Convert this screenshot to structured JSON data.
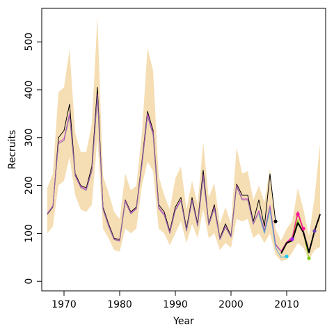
{
  "chart_data": {
    "type": "line",
    "title": "",
    "xlabel": "Year",
    "ylabel": "Recruits",
    "xlim": [
      1966,
      2017
    ],
    "ylim": [
      -20,
      570
    ],
    "xticks": [
      1970,
      1980,
      1990,
      2000,
      2010
    ],
    "yticks": [
      0,
      100,
      200,
      300,
      400,
      500
    ],
    "grid": false,
    "legend": "none",
    "band": {
      "color": "#f5deb3",
      "x": [
        1967,
        1968,
        1969,
        1970,
        1971,
        1972,
        1973,
        1974,
        1975,
        1976,
        1977,
        1978,
        1979,
        1980,
        1981,
        1982,
        1983,
        1984,
        1985,
        1986,
        1987,
        1988,
        1989,
        1990,
        1991,
        1992,
        1993,
        1994,
        1995,
        1996,
        1997,
        1998,
        1999,
        2000,
        2001,
        2002,
        2003,
        2004,
        2005,
        2006,
        2007,
        2008,
        2009,
        2010,
        2011,
        2012,
        2013,
        2014,
        2015,
        2016
      ],
      "lower": [
        100,
        115,
        200,
        210,
        260,
        180,
        150,
        145,
        160,
        300,
        110,
        90,
        65,
        62,
        110,
        100,
        110,
        200,
        250,
        230,
        110,
        100,
        75,
        100,
        125,
        80,
        120,
        90,
        150,
        90,
        100,
        65,
        80,
        70,
        130,
        125,
        130,
        90,
        100,
        80,
        100,
        55,
        42,
        45,
        60,
        80,
        70,
        45,
        65,
        72
      ],
      "upper": [
        195,
        225,
        395,
        405,
        485,
        310,
        270,
        270,
        330,
        553,
        220,
        185,
        145,
        130,
        225,
        190,
        200,
        310,
        487,
        440,
        220,
        180,
        150,
        215,
        240,
        150,
        210,
        160,
        290,
        175,
        205,
        120,
        155,
        120,
        280,
        225,
        230,
        170,
        200,
        165,
        235,
        110,
        85,
        110,
        125,
        195,
        150,
        95,
        175,
        287
      ]
    },
    "series": [
      {
        "color": "#000000",
        "x": [
          1967,
          1968,
          1969,
          1970,
          1971,
          1972,
          1973,
          1974,
          1975,
          1976,
          1977,
          1978,
          1979,
          1980,
          1981,
          1982,
          1983,
          1984,
          1985,
          1986,
          1987,
          1988,
          1989,
          1990,
          1991,
          1992,
          1993,
          1994,
          1995,
          1996,
          1997,
          1998,
          1999,
          2000,
          2001,
          2002,
          2003,
          2004,
          2005,
          2006,
          2007,
          2008
        ],
        "y": [
          140,
          155,
          300,
          315,
          370,
          225,
          200,
          195,
          240,
          405,
          155,
          120,
          90,
          87,
          170,
          145,
          155,
          250,
          355,
          315,
          160,
          145,
          105,
          155,
          175,
          110,
          175,
          120,
          232,
          120,
          160,
          90,
          120,
          95,
          203,
          180,
          180,
          125,
          170,
          115,
          224,
          125
        ]
      },
      {
        "color": "#d44fd0",
        "x": [
          1967,
          1968,
          1969,
          1970,
          1971,
          1972,
          1973,
          1974,
          1975,
          1976,
          1977,
          1978,
          1979,
          1980,
          1981,
          1982,
          1983,
          1984,
          1985,
          1986,
          1987,
          1988,
          1989,
          1990,
          1991,
          1992,
          1993,
          1994,
          1995,
          1996,
          1997,
          1998,
          1999,
          2000,
          2001,
          2002,
          2003,
          2004,
          2005,
          2006,
          2007,
          2008,
          2009,
          2010,
          2011,
          2012,
          2013
        ],
        "y": [
          142,
          158,
          290,
          298,
          350,
          222,
          198,
          192,
          232,
          390,
          152,
          117,
          88,
          85,
          168,
          143,
          153,
          245,
          350,
          310,
          155,
          140,
          102,
          150,
          170,
          106,
          170,
          116,
          222,
          118,
          155,
          88,
          115,
          93,
          200,
          172,
          172,
          120,
          148,
          106,
          158,
          78,
          63,
          82,
          93,
          146,
          110
        ]
      },
      {
        "color": "#8b6aa0",
        "x": [
          1967,
          1968,
          1969,
          1970,
          1971,
          1972,
          1973,
          1974,
          1975,
          1976,
          1977,
          1978,
          1979,
          1980,
          1981,
          1982,
          1983,
          1984,
          1985,
          1986,
          1987,
          1988,
          1989,
          1990,
          1991,
          1992,
          1993,
          1994,
          1995,
          1996,
          1997,
          1998,
          1999,
          2000,
          2001,
          2002,
          2003,
          2004,
          2005,
          2006,
          2007,
          2008,
          2009,
          2010,
          2011,
          2012,
          2013,
          2014,
          2015,
          2016
        ],
        "y": [
          141,
          156,
          287,
          294,
          346,
          220,
          196,
          190,
          230,
          386,
          150,
          115,
          87,
          84,
          166,
          141,
          151,
          242,
          345,
          306,
          152,
          138,
          100,
          148,
          168,
          105,
          168,
          115,
          218,
          117,
          152,
          87,
          113,
          92,
          198,
          170,
          170,
          119,
          145,
          104,
          155,
          75,
          62,
          80,
          90,
          140,
          107,
          65,
          103,
          140
        ]
      },
      {
        "color": "#5fa8d3",
        "x": [
          2005,
          2006,
          2007,
          2008,
          2009,
          2010
        ],
        "y": [
          140,
          100,
          148,
          70,
          50,
          52
        ]
      },
      {
        "color": "#ff1493",
        "x": [
          2009,
          2010,
          2011,
          2012,
          2013
        ],
        "y": [
          62,
          82,
          90,
          145,
          108
        ]
      },
      {
        "color": "#7ccd10",
        "x": [
          2011,
          2012,
          2013,
          2014
        ],
        "y": [
          88,
          128,
          100,
          48
        ]
      },
      {
        "color": "#e05050",
        "x": [
          2010,
          2011,
          2012,
          2013,
          2014
        ],
        "y": [
          80,
          88,
          140,
          105,
          62
        ]
      },
      {
        "color": "#000000",
        "x": [
          2009,
          2010,
          2011,
          2012,
          2013,
          2014,
          2015,
          2016
        ],
        "y": [
          58,
          80,
          85,
          122,
          102,
          60,
          105,
          140
        ]
      }
    ],
    "endpoints": [
      {
        "x": 2008,
        "y": 125,
        "color": "#000000"
      },
      {
        "x": 2010,
        "y": 52,
        "color": "#1fc8f0"
      },
      {
        "x": 2011,
        "y": 88,
        "color": "#a020f0"
      },
      {
        "x": 2012,
        "y": 140,
        "color": "#ff1493"
      },
      {
        "x": 2013,
        "y": 110,
        "color": "#ff1493"
      },
      {
        "x": 2014,
        "y": 48,
        "color": "#7ccd10"
      },
      {
        "x": 2015,
        "y": 105,
        "color": "#6a3fb5"
      }
    ]
  }
}
